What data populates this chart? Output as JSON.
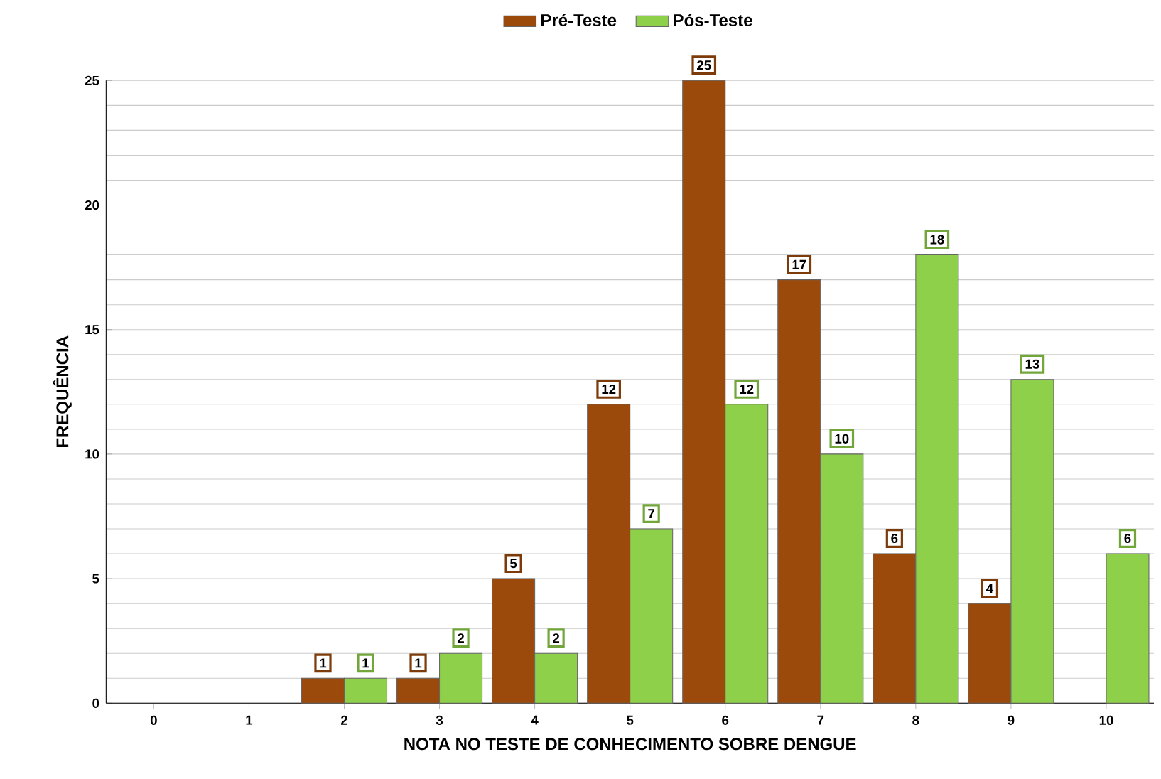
{
  "chart_data": {
    "type": "bar",
    "xlabel": "NOTA NO TESTE DE CONHECIMENTO SOBRE DENGUE",
    "ylabel": "FREQUÊNCIA",
    "categories": [
      "0",
      "1",
      "2",
      "3",
      "4",
      "5",
      "6",
      "7",
      "8",
      "9",
      "10"
    ],
    "series": [
      {
        "name": "Pré-Teste",
        "color": "#9c4a0c",
        "values": [
          null,
          null,
          1,
          1,
          5,
          12,
          25,
          17,
          6,
          4,
          null
        ]
      },
      {
        "name": "Pós-Teste",
        "color": "#8fd04a",
        "values": [
          null,
          null,
          1,
          2,
          2,
          7,
          12,
          10,
          18,
          13,
          6
        ]
      }
    ],
    "ylim": [
      0,
      25
    ],
    "yticks": [
      0,
      5,
      10,
      15,
      20,
      25
    ],
    "grid": "y",
    "legend": "top",
    "data_labels": true
  }
}
